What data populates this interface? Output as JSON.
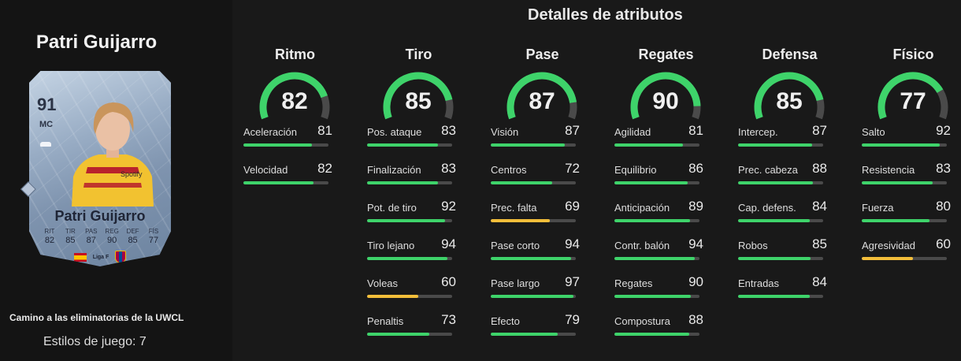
{
  "colors": {
    "high": "#3ed36a",
    "mid": "#f3be3a",
    "track": "#4a4a4a",
    "panel": "#141414",
    "background": "#191919"
  },
  "player": {
    "name": "Patri Guijarro",
    "promo": "Camino a las eliminatorias de la UWCL",
    "playstyles": "Estilos de juego: 7"
  },
  "card": {
    "rating": "91",
    "position": "MC",
    "name": "Patri Guijarro",
    "kit_sponsor": "Spotify",
    "league": "Liga F",
    "stats": [
      {
        "label": "RIT",
        "value": "82"
      },
      {
        "label": "TIR",
        "value": "85"
      },
      {
        "label": "PAS",
        "value": "87"
      },
      {
        "label": "REG",
        "value": "90"
      },
      {
        "label": "DEF",
        "value": "85"
      },
      {
        "label": "FÍS",
        "value": "77"
      }
    ],
    "icons": [
      "boot-icon",
      "spain-flag-icon",
      "liga-f-logo",
      "fc-barcelona-crest",
      "diamond-icon"
    ]
  },
  "title": "Detalles de atributos",
  "categories": [
    {
      "name": "Ritmo",
      "value": 82,
      "attributes": [
        {
          "label": "Aceleración",
          "value": 81
        },
        {
          "label": "Velocidad",
          "value": 82
        }
      ]
    },
    {
      "name": "Tiro",
      "value": 85,
      "attributes": [
        {
          "label": "Pos. ataque",
          "value": 83
        },
        {
          "label": "Finalización",
          "value": 83
        },
        {
          "label": "Pot. de tiro",
          "value": 92
        },
        {
          "label": "Tiro lejano",
          "value": 94
        },
        {
          "label": "Voleas",
          "value": 60
        },
        {
          "label": "Penaltis",
          "value": 73
        }
      ]
    },
    {
      "name": "Pase",
      "value": 87,
      "attributes": [
        {
          "label": "Visión",
          "value": 87
        },
        {
          "label": "Centros",
          "value": 72
        },
        {
          "label": "Prec. falta",
          "value": 69
        },
        {
          "label": "Pase corto",
          "value": 94
        },
        {
          "label": "Pase largo",
          "value": 97
        },
        {
          "label": "Efecto",
          "value": 79
        }
      ]
    },
    {
      "name": "Regates",
      "value": 90,
      "attributes": [
        {
          "label": "Agilidad",
          "value": 81
        },
        {
          "label": "Equilibrio",
          "value": 86
        },
        {
          "label": "Anticipación",
          "value": 89
        },
        {
          "label": "Contr. balón",
          "value": 94
        },
        {
          "label": "Regates",
          "value": 90
        },
        {
          "label": "Compostura",
          "value": 88
        }
      ]
    },
    {
      "name": "Defensa",
      "value": 85,
      "attributes": [
        {
          "label": "Intercep.",
          "value": 87
        },
        {
          "label": "Prec. cabeza",
          "value": 88
        },
        {
          "label": "Cap. defens.",
          "value": 84
        },
        {
          "label": "Robos",
          "value": 85
        },
        {
          "label": "Entradas",
          "value": 84
        }
      ]
    },
    {
      "name": "Físico",
      "value": 77,
      "attributes": [
        {
          "label": "Salto",
          "value": 92
        },
        {
          "label": "Resistencia",
          "value": 83
        },
        {
          "label": "Fuerza",
          "value": 80
        },
        {
          "label": "Agresividad",
          "value": 60
        }
      ]
    }
  ]
}
